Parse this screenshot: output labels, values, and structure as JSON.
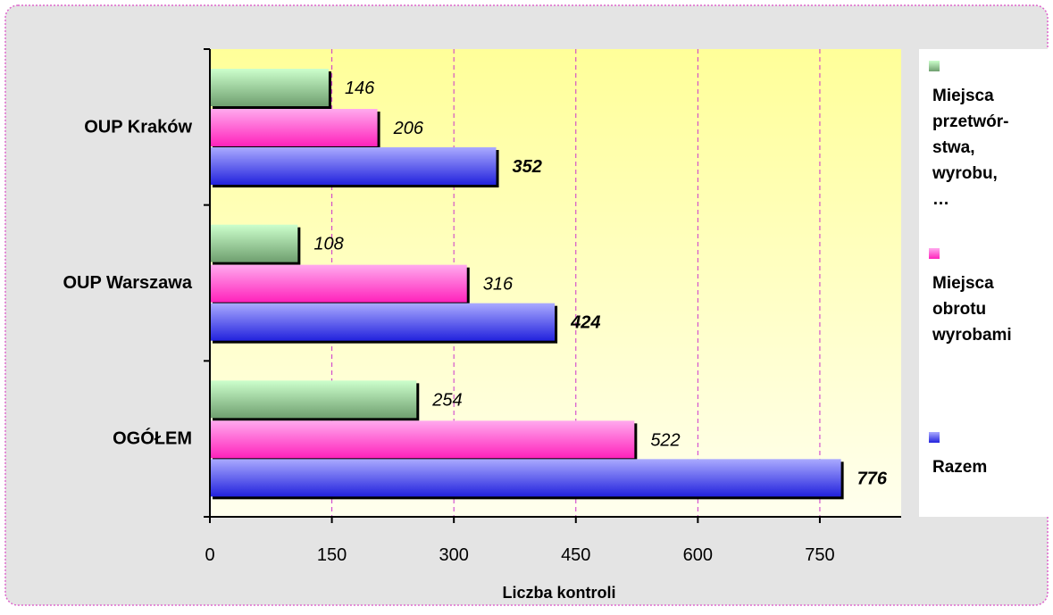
{
  "chart_data": {
    "type": "bar",
    "orientation": "horizontal",
    "categories": [
      "OUP Kraków",
      "OUP Warszawa",
      "OGÓŁEM"
    ],
    "series": [
      {
        "name": "Miejsca przetwór-stwa, wyrobu, …",
        "values": [
          146,
          108,
          254
        ],
        "color": "#8fbc8f"
      },
      {
        "name": "Miejsca obrotu wyrobami",
        "values": [
          206,
          316,
          522
        ],
        "color": "#ff55cc"
      },
      {
        "name": "Razem",
        "values": [
          352,
          424,
          776
        ],
        "color": "#5555ee"
      }
    ],
    "xlabel": "Liczba kontroli",
    "ylabel": "",
    "xlim": [
      0,
      850
    ],
    "xticks": [
      "0",
      "150",
      "300",
      "450",
      "600",
      "750"
    ],
    "xtick_values": [
      0,
      150,
      300,
      450,
      600,
      750
    ],
    "grid": true,
    "legend_position": "right",
    "legend": [
      {
        "lines": [
          "Miejsca",
          "przetwór-",
          "stwa,",
          "wyrobu,",
          "…"
        ]
      },
      {
        "lines": [
          "Miejsca",
          "obrotu",
          "wyrobami"
        ]
      },
      {
        "lines": [
          "Razem"
        ]
      }
    ],
    "data_labels": [
      [
        "146",
        "206",
        "352"
      ],
      [
        "108",
        "316",
        "424"
      ],
      [
        "254",
        "522",
        "776"
      ]
    ],
    "colors": {
      "background": "#e4e4e4",
      "frame": "#dd66cc",
      "plot_top": "#ffff99",
      "plot_bottom": "#ffffee",
      "grid": "#cc33cc"
    }
  }
}
